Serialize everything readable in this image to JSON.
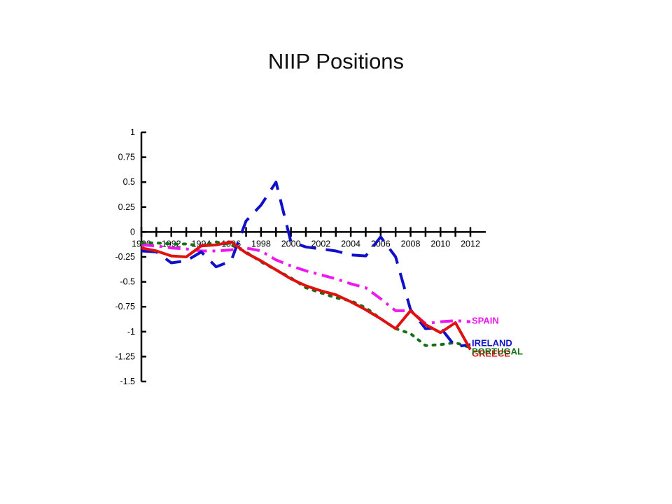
{
  "title": "NIIP Positions",
  "chart_data": {
    "type": "line",
    "title": "NIIP Positions",
    "xlabel": "",
    "ylabel": "",
    "x": [
      1990,
      1991,
      1992,
      1993,
      1994,
      1995,
      1996,
      1997,
      1998,
      1999,
      2000,
      2001,
      2002,
      2003,
      2004,
      2005,
      2006,
      2007,
      2008,
      2009,
      2010,
      2011,
      2012
    ],
    "x_ticks": [
      "1990",
      "1992",
      "1994",
      "1996",
      "1998",
      "2000",
      "2002",
      "2004",
      "2006",
      "2008",
      "2010",
      "2012"
    ],
    "y_ticks": [
      "1",
      "0.75",
      "0.5",
      "0.25",
      "0",
      "-0.25",
      "-0.5",
      "-0.75",
      "-1",
      "-1.25",
      "-1.5"
    ],
    "ylim": [
      -1.5,
      1
    ],
    "xlim": [
      1990,
      2012
    ],
    "grid": false,
    "legend": "labels at line ends (right)",
    "series": [
      {
        "name": "IRELAND",
        "color": "#1010c8",
        "style": "long-dash",
        "x": [
          1990,
          1991,
          1992,
          1993,
          1994,
          1995,
          1996,
          1997,
          1998,
          1999,
          2000,
          2001,
          2002,
          2003,
          2004,
          2005,
          2006,
          2007,
          2008,
          2009,
          2010,
          2011,
          2012
        ],
        "values": [
          -0.19,
          -0.2,
          -0.31,
          -0.29,
          -0.2,
          -0.35,
          -0.29,
          0.11,
          0.27,
          0.5,
          -0.1,
          -0.15,
          -0.17,
          -0.19,
          -0.23,
          -0.24,
          -0.05,
          -0.25,
          -0.78,
          -0.97,
          -0.96,
          -1.15,
          -1.13
        ]
      },
      {
        "name": "GREECE",
        "color": "#e01010",
        "style": "solid",
        "x": [
          1990,
          1991,
          1992,
          1993,
          1994,
          1995,
          1996,
          1997,
          1998,
          1999,
          2000,
          2001,
          2002,
          2003,
          2004,
          2005,
          2006,
          2007,
          2008,
          2009,
          2010,
          2011,
          2012
        ],
        "values": [
          -0.16,
          -0.19,
          -0.24,
          -0.25,
          -0.14,
          -0.13,
          -0.1,
          -0.21,
          -0.29,
          -0.38,
          -0.47,
          -0.54,
          -0.59,
          -0.63,
          -0.7,
          -0.78,
          -0.87,
          -0.97,
          -0.79,
          -0.93,
          -1.01,
          -0.91,
          -1.18
        ]
      },
      {
        "name": "SPAIN",
        "color": "#ee18ee",
        "style": "dash-dot",
        "x": [
          1990,
          1991,
          1992,
          1993,
          1994,
          1995,
          1996,
          1997,
          1998,
          1999,
          2000,
          2001,
          2002,
          2003,
          2004,
          2005,
          2006,
          2007,
          2008,
          2009,
          2010,
          2011,
          2012
        ],
        "values": [
          -0.13,
          -0.14,
          -0.16,
          -0.17,
          -0.19,
          -0.19,
          -0.18,
          -0.16,
          -0.19,
          -0.28,
          -0.34,
          -0.39,
          -0.43,
          -0.47,
          -0.52,
          -0.56,
          -0.67,
          -0.79,
          -0.79,
          -0.92,
          -0.9,
          -0.89,
          -0.9
        ]
      },
      {
        "name": "PORTUGAL",
        "color": "#157015",
        "style": "dotted",
        "x": [
          1990,
          1991,
          1992,
          1993,
          1994,
          1995,
          1996,
          1997,
          1998,
          1999,
          2000,
          2001,
          2002,
          2003,
          2004,
          2005,
          2006,
          2007,
          2008,
          2009,
          2010,
          2011,
          2012
        ],
        "values": [
          -0.11,
          -0.11,
          -0.12,
          -0.12,
          -0.14,
          -0.1,
          -0.13,
          -0.2,
          -0.3,
          -0.38,
          -0.46,
          -0.56,
          -0.61,
          -0.66,
          -0.69,
          -0.76,
          -0.87,
          -0.97,
          -1.02,
          -1.14,
          -1.13,
          -1.11,
          -1.16
        ]
      }
    ]
  }
}
